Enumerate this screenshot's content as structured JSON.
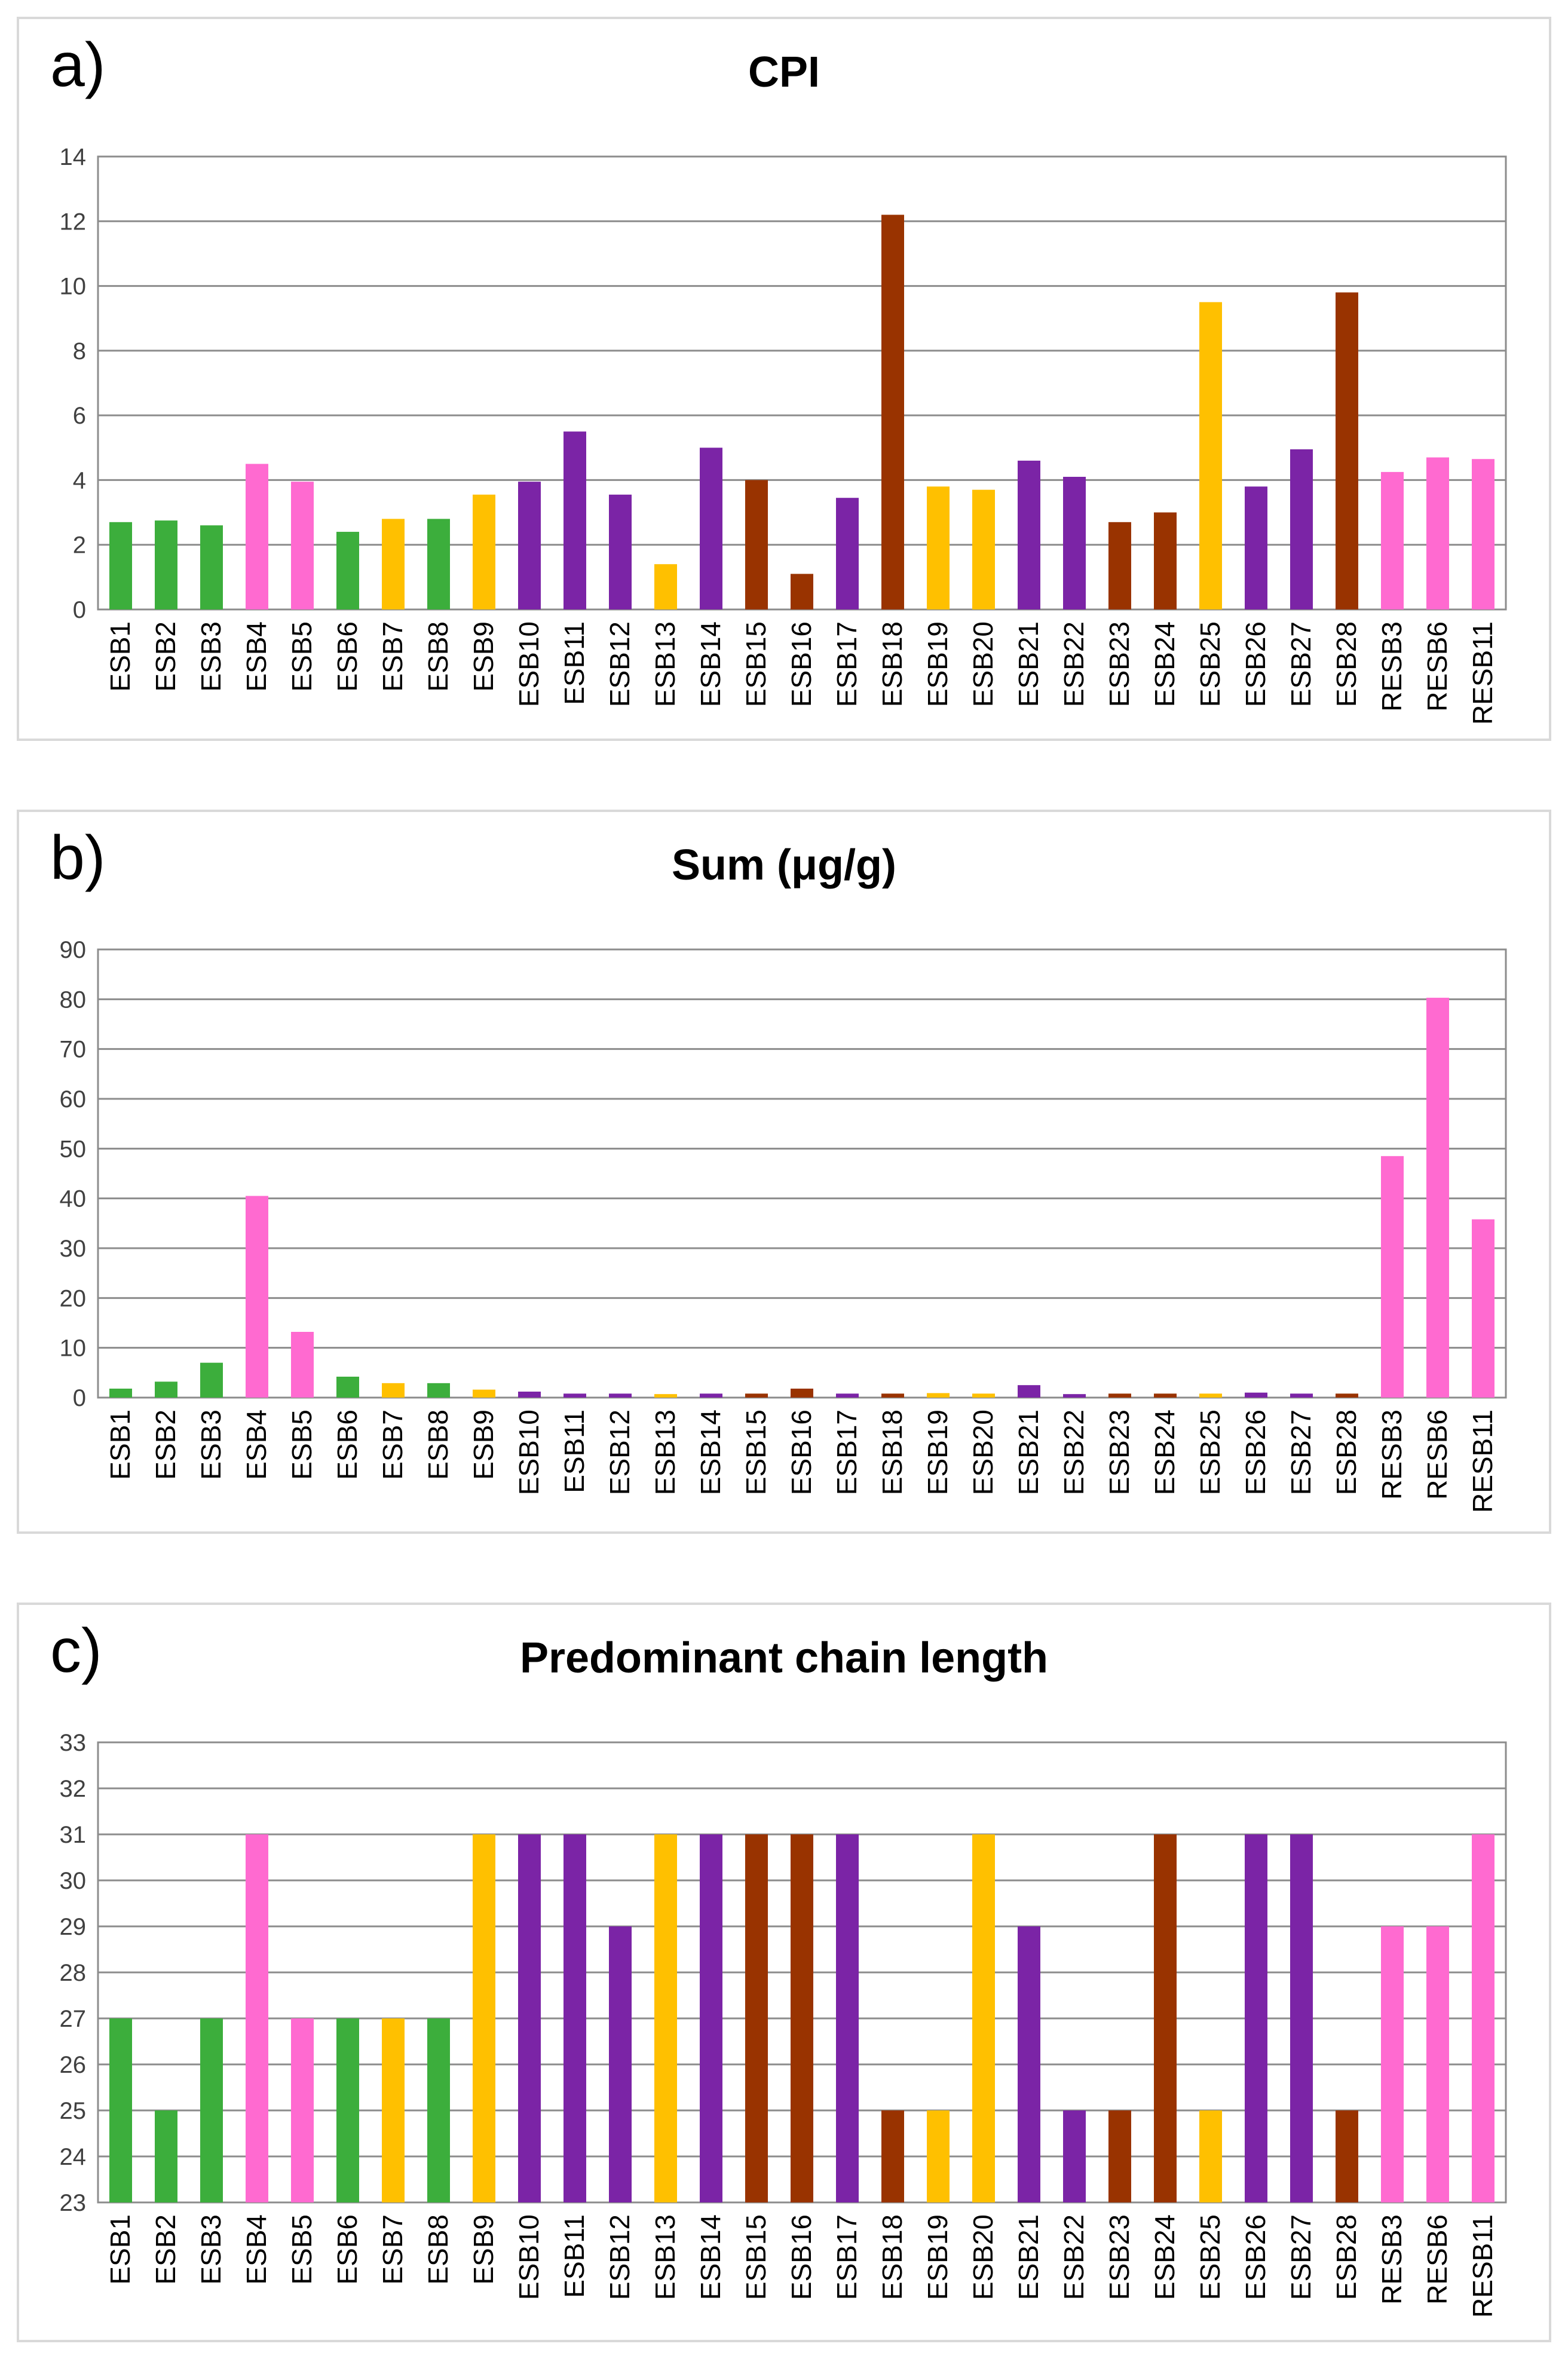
{
  "colors": {
    "green": "#3cae3c",
    "pink": "#ff6ad0",
    "yellow": "#ffc000",
    "purple": "#7b24a6",
    "brown": "#993300",
    "grid": "#8c8c8c",
    "axis": "#7f7f7f",
    "border": "#d9d9d9"
  },
  "chart_data": [
    {
      "panel": "a)",
      "type": "bar",
      "title": "CPI",
      "xlabel": "",
      "ylabel": "",
      "ylim": [
        0,
        14
      ],
      "ytick_step": 2,
      "yticks": [
        "0",
        "2",
        "4",
        "6",
        "8",
        "10",
        "12",
        "14"
      ],
      "grid": true,
      "categories": [
        "ESB1",
        "ESB2",
        "ESB3",
        "ESB4",
        "ESB5",
        "ESB6",
        "ESB7",
        "ESB8",
        "ESB9",
        "ESB10",
        "ESB11",
        "ESB12",
        "ESB13",
        "ESB14",
        "ESB15",
        "ESB16",
        "ESB17",
        "ESB18",
        "ESB19",
        "ESB20",
        "ESB21",
        "ESB22",
        "ESB23",
        "ESB24",
        "ESB25",
        "ESB26",
        "ESB27",
        "ESB28",
        "RESB3",
        "RESB6",
        "RESB11"
      ],
      "color_groups": [
        "green",
        "green",
        "green",
        "pink",
        "pink",
        "green",
        "yellow",
        "green",
        "yellow",
        "purple",
        "purple",
        "purple",
        "yellow",
        "purple",
        "brown",
        "brown",
        "purple",
        "brown",
        "yellow",
        "yellow",
        "purple",
        "purple",
        "brown",
        "brown",
        "yellow",
        "purple",
        "purple",
        "brown",
        "pink",
        "pink",
        "pink"
      ],
      "values": [
        2.7,
        2.75,
        2.6,
        4.5,
        3.95,
        2.4,
        2.8,
        2.8,
        3.55,
        3.95,
        5.5,
        3.55,
        1.4,
        5.0,
        4.0,
        1.1,
        3.45,
        12.2,
        3.8,
        3.7,
        4.6,
        4.1,
        2.7,
        3.0,
        9.5,
        3.8,
        4.95,
        9.8,
        4.25,
        4.7,
        4.65
      ]
    },
    {
      "panel": "b)",
      "type": "bar",
      "title": "Sum (μg/g)",
      "xlabel": "",
      "ylabel": "",
      "ylim": [
        0,
        90
      ],
      "ytick_step": 10,
      "yticks": [
        "0",
        "10",
        "20",
        "30",
        "40",
        "50",
        "60",
        "70",
        "80",
        "90"
      ],
      "grid": true,
      "categories": [
        "ESB1",
        "ESB2",
        "ESB3",
        "ESB4",
        "ESB5",
        "ESB6",
        "ESB7",
        "ESB8",
        "ESB9",
        "ESB10",
        "ESB11",
        "ESB12",
        "ESB13",
        "ESB14",
        "ESB15",
        "ESB16",
        "ESB17",
        "ESB18",
        "ESB19",
        "ESB20",
        "ESB21",
        "ESB22",
        "ESB23",
        "ESB24",
        "ESB25",
        "ESB26",
        "ESB27",
        "ESB28",
        "RESB3",
        "RESB6",
        "RESB11"
      ],
      "color_groups": [
        "green",
        "green",
        "green",
        "pink",
        "pink",
        "green",
        "yellow",
        "green",
        "yellow",
        "purple",
        "purple",
        "purple",
        "yellow",
        "purple",
        "brown",
        "brown",
        "purple",
        "brown",
        "yellow",
        "yellow",
        "purple",
        "purple",
        "brown",
        "brown",
        "yellow",
        "purple",
        "purple",
        "brown",
        "pink",
        "pink",
        "pink"
      ],
      "values": [
        1.8,
        3.2,
        7.0,
        40.5,
        13.2,
        4.2,
        2.9,
        2.9,
        1.6,
        1.2,
        0.8,
        0.8,
        0.7,
        0.8,
        0.8,
        1.8,
        0.8,
        0.8,
        0.9,
        0.8,
        2.5,
        0.7,
        0.8,
        0.8,
        0.8,
        1.0,
        0.8,
        0.8,
        48.5,
        80.3,
        35.8
      ]
    },
    {
      "panel": "c)",
      "type": "bar",
      "title": "Predominant chain length",
      "xlabel": "",
      "ylabel": "",
      "ylim": [
        23,
        33
      ],
      "ytick_step": 1,
      "yticks": [
        "23",
        "24",
        "25",
        "26",
        "27",
        "28",
        "29",
        "30",
        "31",
        "32",
        "33"
      ],
      "grid": true,
      "categories": [
        "ESB1",
        "ESB2",
        "ESB3",
        "ESB4",
        "ESB5",
        "ESB6",
        "ESB7",
        "ESB8",
        "ESB9",
        "ESB10",
        "ESB11",
        "ESB12",
        "ESB13",
        "ESB14",
        "ESB15",
        "ESB16",
        "ESB17",
        "ESB18",
        "ESB19",
        "ESB20",
        "ESB21",
        "ESB22",
        "ESB23",
        "ESB24",
        "ESB25",
        "ESB26",
        "ESB27",
        "ESB28",
        "RESB3",
        "RESB6",
        "RESB11"
      ],
      "color_groups": [
        "green",
        "green",
        "green",
        "pink",
        "pink",
        "green",
        "yellow",
        "green",
        "yellow",
        "purple",
        "purple",
        "purple",
        "yellow",
        "purple",
        "brown",
        "brown",
        "purple",
        "brown",
        "yellow",
        "yellow",
        "purple",
        "purple",
        "brown",
        "brown",
        "yellow",
        "purple",
        "purple",
        "brown",
        "pink",
        "pink",
        "pink"
      ],
      "values": [
        27,
        25,
        27,
        31,
        27,
        27,
        27,
        27,
        31,
        31,
        31,
        29,
        31,
        31,
        31,
        31,
        31,
        25,
        25,
        31,
        29,
        25,
        25,
        31,
        25,
        31,
        31,
        25,
        29,
        29,
        31
      ]
    }
  ]
}
